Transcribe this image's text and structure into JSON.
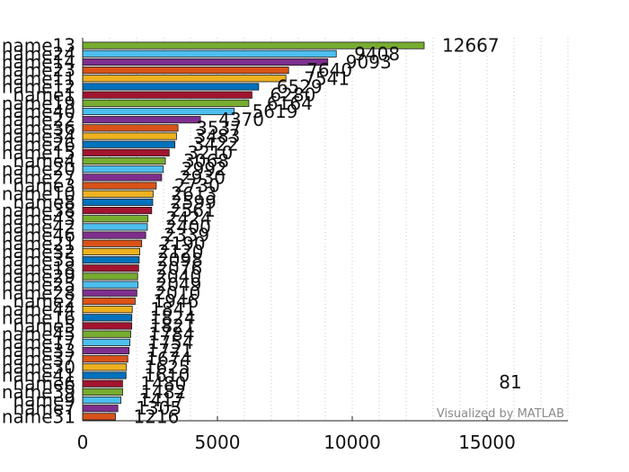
{
  "chart_data": {
    "type": "bar",
    "orientation": "horizontal",
    "title": "",
    "xlabel": "",
    "ylabel": "",
    "xlim": [
      0,
      18000
    ],
    "xticks": [
      0,
      5000,
      10000,
      15000
    ],
    "xtick_labels": [
      "0",
      "5000",
      "10000",
      "15000"
    ],
    "grid": "vertical dotted",
    "categories": [
      "name13",
      "name24",
      "name14",
      "name23",
      "name11",
      "name12",
      "name1",
      "name19",
      "name40",
      "name22",
      "name36",
      "name34",
      "name26",
      "name15",
      "name4",
      "name20",
      "name27",
      "name3",
      "name10",
      "name8",
      "name38",
      "name43",
      "name42",
      "name46",
      "name21",
      "name32",
      "name35",
      "name18",
      "name29",
      "name25",
      "name28",
      "name2",
      "name44",
      "name16",
      "name5",
      "name45",
      "name17",
      "name33",
      "name37",
      "name30",
      "name41",
      "name6",
      "name39",
      "name9",
      "name7",
      "name31"
    ],
    "values": [
      12667,
      9408,
      9093,
      7640,
      7541,
      6529,
      6280,
      6164,
      5619,
      4370,
      3537,
      3483,
      3422,
      3210,
      3068,
      2992,
      2930,
      2730,
      2613,
      2599,
      2561,
      2424,
      2400,
      2339,
      2190,
      2120,
      2098,
      2076,
      2040,
      2049,
      2010,
      1946,
      1841,
      1824,
      1821,
      1784,
      1754,
      1721,
      1674,
      1625,
      1610,
      1480,
      1482,
      1417,
      1305,
      1216
    ],
    "bar_colors": [
      "#77ac30",
      "#4dbeee",
      "#7e2f8e",
      "#d95319",
      "#edb120",
      "#0072bd",
      "#a2142f"
    ],
    "annotation": "81",
    "watermark": "Visualized by MATLAB"
  }
}
